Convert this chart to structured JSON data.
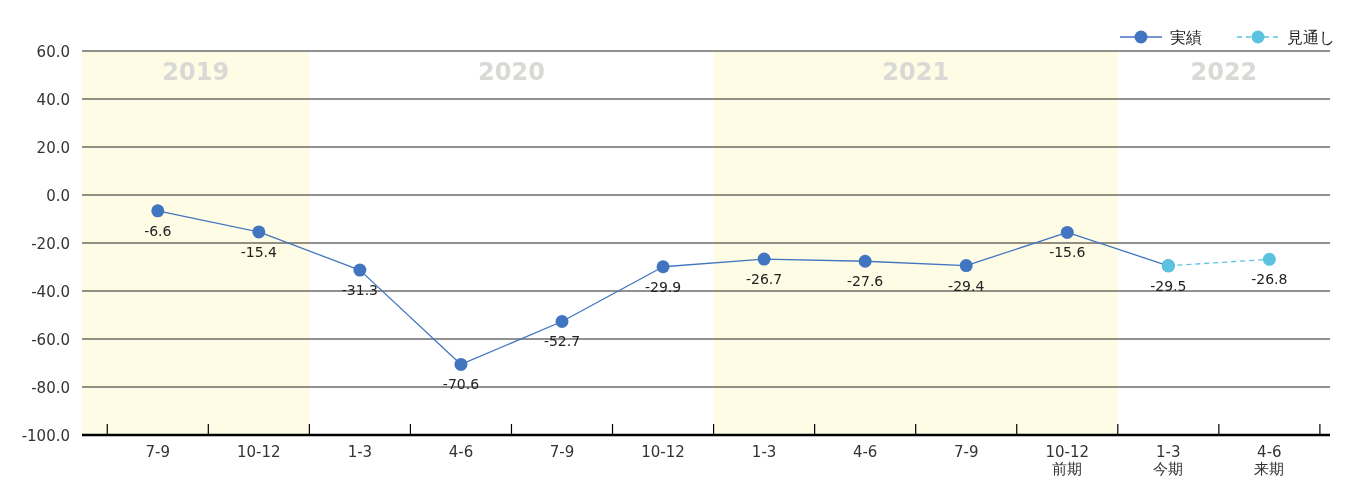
{
  "chart_data": {
    "type": "line",
    "categories": [
      "7-9",
      "10-12",
      "1-3",
      "4-6",
      "7-9",
      "10-12",
      "1-3",
      "4-6",
      "7-9",
      "10-12\n前期",
      "1-3\n今期",
      "4-6\n来期"
    ],
    "series": [
      {
        "name": "実績",
        "color": "#4275c0",
        "line_style": "solid",
        "values": [
          -6.6,
          -15.4,
          -31.3,
          -70.6,
          -52.7,
          -29.9,
          -26.7,
          -27.6,
          -29.4,
          -15.6,
          -29.5,
          null
        ],
        "value_labels": [
          "-6.6",
          "-15.4",
          "-31.3",
          "-70.6",
          "-52.7",
          "-29.9",
          "-26.7",
          "-27.6",
          "-29.4",
          "-15.6",
          "-29.5",
          null
        ]
      },
      {
        "name": "見通し",
        "color": "#5bc3e0",
        "line_style": "dashed",
        "values": [
          null,
          null,
          null,
          null,
          null,
          null,
          null,
          null,
          null,
          null,
          -29.5,
          -26.8
        ],
        "value_labels": [
          null,
          null,
          null,
          null,
          null,
          null,
          null,
          null,
          null,
          null,
          null,
          "-26.8"
        ]
      }
    ],
    "ylim": [
      -100,
      60
    ],
    "yticks": [
      {
        "value": -100,
        "label": "-100.0"
      },
      {
        "value": -80,
        "label": "-80.0"
      },
      {
        "value": -60,
        "label": "-60.0"
      },
      {
        "value": -40,
        "label": "-40.0"
      },
      {
        "value": -20,
        "label": "-20.0"
      },
      {
        "value": 0,
        "label": "0.0"
      },
      {
        "value": 20,
        "label": "20.0"
      },
      {
        "value": 40,
        "label": "40.0"
      },
      {
        "value": 60,
        "label": "60.0"
      }
    ],
    "annotations": [
      "2019",
      "2020",
      "2021",
      "2022"
    ],
    "grid": "y",
    "legend": "top right",
    "marker": "circle"
  }
}
